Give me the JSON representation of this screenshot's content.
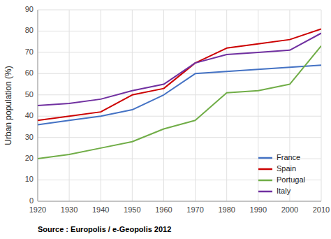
{
  "chart_data": {
    "type": "line",
    "x": [
      1920,
      1930,
      1940,
      1950,
      1960,
      1970,
      1980,
      1990,
      2000,
      2010
    ],
    "series": [
      {
        "name": "France",
        "color": "#4472C4",
        "values": [
          36,
          38,
          40,
          43,
          50,
          60,
          61,
          62,
          63,
          64
        ]
      },
      {
        "name": "Spain",
        "color": "#CC0000",
        "values": [
          38,
          40,
          42,
          50,
          53,
          65,
          72,
          74,
          76,
          81
        ]
      },
      {
        "name": "Portugal",
        "color": "#70AD47",
        "values": [
          20,
          22,
          25,
          28,
          34,
          38,
          51,
          52,
          55,
          73
        ]
      },
      {
        "name": "Italy",
        "color": "#7030A0",
        "values": [
          45,
          46,
          48,
          52,
          55,
          65,
          69,
          70,
          71,
          79
        ]
      }
    ],
    "y_label": "Urban population (%)",
    "xlim": [
      1920,
      2010
    ],
    "xticks": [
      1920,
      1930,
      1940,
      1950,
      1960,
      1970,
      1980,
      1990,
      2000,
      2010
    ],
    "ylim": [
      0,
      90
    ],
    "yticks": [
      0,
      10,
      20,
      30,
      40,
      50,
      60,
      70,
      80,
      90
    ],
    "grid": true,
    "legend": "lower right",
    "annotations": [
      "Source : Europolis / e-Geopolis 2012"
    ]
  }
}
